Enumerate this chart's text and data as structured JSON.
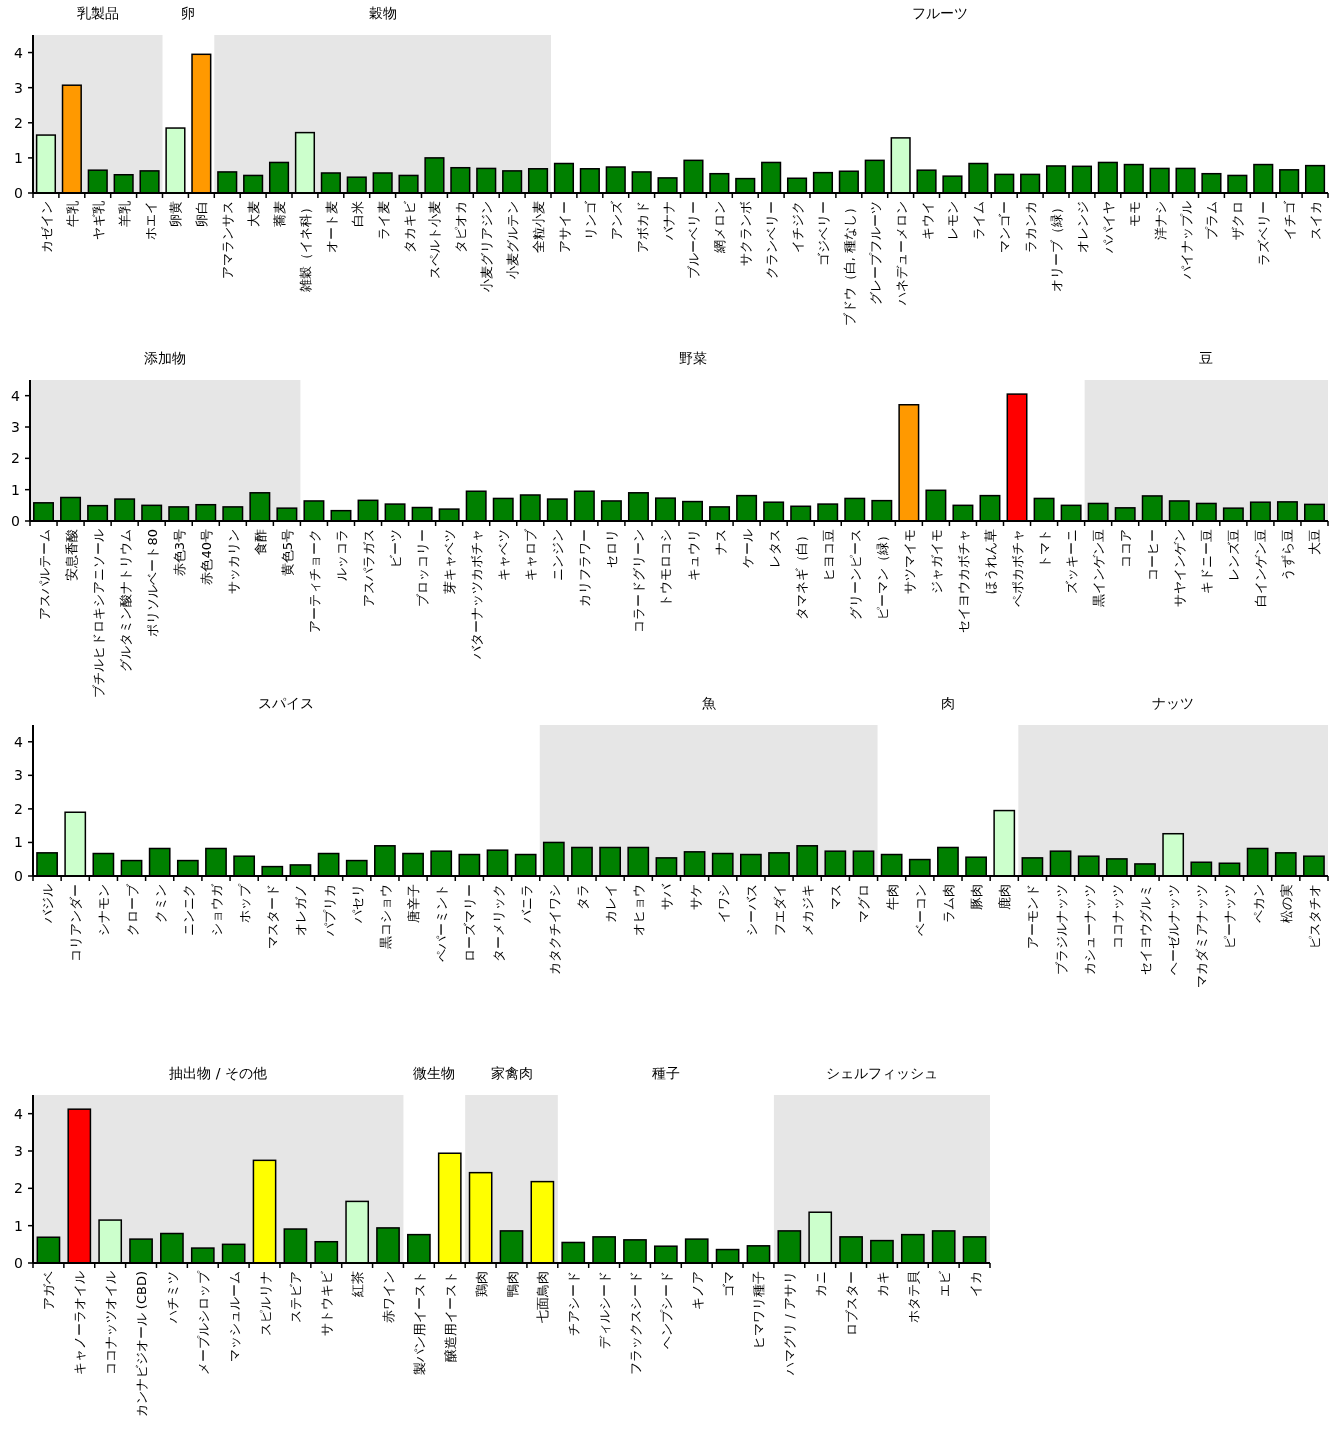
{
  "chart_data": [
    {
      "type": "bar",
      "ylim": [
        0,
        4.5
      ],
      "yticks": [
        0,
        1,
        2,
        3,
        4
      ],
      "categories": [
        "カゼイン",
        "牛乳",
        "ヤギ乳",
        "羊乳",
        "ホエイ",
        "卵黄",
        "卵白",
        "アマランサス",
        "大麦",
        "蕎麦",
        "雑穀（イネ科）",
        "オート麦",
        "白米",
        "ライ麦",
        "タカキビ",
        "スペルト小麦",
        "タピオカ",
        "小麦グリアジン",
        "小麦グルテン",
        "全粒小麦",
        "アサイー",
        "リンゴ",
        "アンズ",
        "アボカド",
        "バナナ",
        "ブルーベリー",
        "網メロン",
        "サクランボ",
        "クランベリー",
        "イチジク",
        "ゴジベリー",
        "ブドウ（白, 種なし）",
        "グレープフルーツ",
        "ハネデューメロン",
        "キウイ",
        "レモン",
        "ライム",
        "マンゴー",
        "ラカンカ",
        "オリーブ（緑）",
        "オレンジ",
        "パパイヤ",
        "モモ",
        "洋ナシ",
        "パイナップル",
        "プラム",
        "ザクロ",
        "ラズベリー",
        "イチゴ",
        "スイカ"
      ],
      "values": [
        1.65,
        3.07,
        0.65,
        0.52,
        0.63,
        1.85,
        3.95,
        0.6,
        0.5,
        0.87,
        1.72,
        0.57,
        0.45,
        0.57,
        0.5,
        1.0,
        0.72,
        0.7,
        0.63,
        0.69,
        0.84,
        0.69,
        0.74,
        0.6,
        0.43,
        0.93,
        0.55,
        0.41,
        0.87,
        0.42,
        0.58,
        0.62,
        0.93,
        1.57,
        0.65,
        0.48,
        0.84,
        0.53,
        0.53,
        0.77,
        0.76,
        0.87,
        0.81,
        0.7,
        0.7,
        0.55,
        0.5,
        0.81,
        0.66,
        0.78
      ],
      "colors": [
        "#ccffcc",
        "#ff9900",
        "#008000",
        "#008000",
        "#008000",
        "#ccffcc",
        "#ff9900",
        "#008000",
        "#008000",
        "#008000",
        "#ccffcc",
        "#008000",
        "#008000",
        "#008000",
        "#008000",
        "#008000",
        "#008000",
        "#008000",
        "#008000",
        "#008000",
        "#008000",
        "#008000",
        "#008000",
        "#008000",
        "#008000",
        "#008000",
        "#008000",
        "#008000",
        "#008000",
        "#008000",
        "#008000",
        "#008000",
        "#008000",
        "#ccffcc",
        "#008000",
        "#008000",
        "#008000",
        "#008000",
        "#008000",
        "#008000",
        "#008000",
        "#008000",
        "#008000",
        "#008000",
        "#008000",
        "#008000",
        "#008000",
        "#008000",
        "#008000",
        "#008000"
      ],
      "bands": [
        {
          "axis": "x",
          "from": "カゼイン",
          "to": "ホエイ",
          "label": "乳製品",
          "color": "#e6e6e6"
        },
        {
          "axis": "x",
          "from": "アマランサス",
          "to": "全粒小麦",
          "label": "穀物",
          "color": "#e6e6e6"
        }
      ],
      "annotations": [
        "卵",
        "フルーツ"
      ]
    },
    {
      "type": "bar",
      "ylim": [
        0,
        4.5
      ],
      "yticks": [
        0,
        1,
        2,
        3,
        4
      ],
      "categories": [
        "アスパルテーム",
        "安息香酸",
        "ブチルヒドロキシアニソール",
        "グルタミン酸ナトリウム",
        "ポリソルベート80",
        "赤色3号",
        "赤色40号",
        "サッカリン",
        "食酢",
        "黄色5号",
        "アーティチョーク",
        "ルッコラ",
        "アスパラガス",
        "ビーツ",
        "ブロッコリー",
        "芽キャベツ",
        "バターナッツカボチャ",
        "キャベツ",
        "キャロブ",
        "ニンジン",
        "カリフラワー",
        "セロリ",
        "コラードグリーン",
        "トウモロコシ",
        "キュウリ",
        "ナス",
        "ケール",
        "レタス",
        "タマネギ（白）",
        "ヒヨコ豆",
        "グリーンピース",
        "ピーマン（緑）",
        "サツマイモ",
        "ジャガイモ",
        "セイヨウカボチャ",
        "ほうれん草",
        "ペポカボチャ",
        "トマト",
        "ズッキーニ",
        "黒インゲン豆",
        "ココア",
        "コーヒー",
        "サヤインゲン",
        "キドニー豆",
        "レンズ豆",
        "白インゲン豆",
        "うずら豆",
        "大豆"
      ],
      "values": [
        0.58,
        0.75,
        0.49,
        0.7,
        0.5,
        0.45,
        0.52,
        0.45,
        0.9,
        0.41,
        0.64,
        0.33,
        0.66,
        0.54,
        0.43,
        0.38,
        0.95,
        0.72,
        0.83,
        0.7,
        0.95,
        0.64,
        0.9,
        0.73,
        0.62,
        0.45,
        0.81,
        0.6,
        0.47,
        0.54,
        0.72,
        0.65,
        3.71,
        0.98,
        0.5,
        0.81,
        4.05,
        0.72,
        0.5,
        0.56,
        0.42,
        0.8,
        0.64,
        0.56,
        0.41,
        0.6,
        0.61,
        0.53
      ],
      "colors": [
        "#008000",
        "#008000",
        "#008000",
        "#008000",
        "#008000",
        "#008000",
        "#008000",
        "#008000",
        "#008000",
        "#008000",
        "#008000",
        "#008000",
        "#008000",
        "#008000",
        "#008000",
        "#008000",
        "#008000",
        "#008000",
        "#008000",
        "#008000",
        "#008000",
        "#008000",
        "#008000",
        "#008000",
        "#008000",
        "#008000",
        "#008000",
        "#008000",
        "#008000",
        "#008000",
        "#008000",
        "#008000",
        "#ff9900",
        "#008000",
        "#008000",
        "#008000",
        "#ff0000",
        "#008000",
        "#008000",
        "#008000",
        "#008000",
        "#008000",
        "#008000",
        "#008000",
        "#008000",
        "#008000",
        "#008000",
        "#008000"
      ],
      "bands": [
        {
          "axis": "x",
          "from": "アスパルテーム",
          "to": "黄色5号",
          "label": "添加物",
          "color": "#e6e6e6"
        },
        {
          "axis": "x",
          "from": "黒インゲン豆",
          "to": "大豆",
          "label": "豆",
          "color": "#e6e6e6"
        }
      ],
      "annotations": [
        "野菜"
      ]
    },
    {
      "type": "bar",
      "ylim": [
        0,
        4.5
      ],
      "yticks": [
        0,
        1,
        2,
        3,
        4
      ],
      "categories": [
        "バジル",
        "コリアンダー",
        "シナモン",
        "クローブ",
        "クミン",
        "ニンニク",
        "ショウガ",
        "ホップ",
        "マスタード",
        "オレガノ",
        "パプリカ",
        "パセリ",
        "黒コショウ",
        "唐辛子",
        "ペパーミント",
        "ローズマリー",
        "ターメリック",
        "バニラ",
        "カタクチイワシ",
        "タラ",
        "カレイ",
        "オヒョウ",
        "サバ",
        "サケ",
        "イワシ",
        "シーバス",
        "フエダイ",
        "メカジキ",
        "マス",
        "マグロ",
        "牛肉",
        "ベーコン",
        "ラム肉",
        "豚肉",
        "鹿肉",
        "アーモンド",
        "ブラジルナッツ",
        "カシューナッツ",
        "ココナッツ",
        "セイヨウグルミ",
        "ヘーゼルナッツ",
        "マカダミアナッツ",
        "ピーナッツ",
        "ペカン",
        "松の実",
        "ピスタチオ"
      ],
      "values": [
        0.69,
        1.9,
        0.67,
        0.46,
        0.82,
        0.46,
        0.82,
        0.59,
        0.28,
        0.33,
        0.67,
        0.46,
        0.9,
        0.67,
        0.74,
        0.64,
        0.77,
        0.64,
        1.0,
        0.85,
        0.85,
        0.85,
        0.54,
        0.72,
        0.67,
        0.64,
        0.69,
        0.9,
        0.74,
        0.74,
        0.64,
        0.49,
        0.85,
        0.56,
        1.95,
        0.54,
        0.74,
        0.59,
        0.51,
        0.36,
        1.26,
        0.41,
        0.38,
        0.82,
        0.69,
        0.59
      ],
      "colors": [
        "#008000",
        "#ccffcc",
        "#008000",
        "#008000",
        "#008000",
        "#008000",
        "#008000",
        "#008000",
        "#008000",
        "#008000",
        "#008000",
        "#008000",
        "#008000",
        "#008000",
        "#008000",
        "#008000",
        "#008000",
        "#008000",
        "#008000",
        "#008000",
        "#008000",
        "#008000",
        "#008000",
        "#008000",
        "#008000",
        "#008000",
        "#008000",
        "#008000",
        "#008000",
        "#008000",
        "#008000",
        "#008000",
        "#008000",
        "#008000",
        "#ccffcc",
        "#008000",
        "#008000",
        "#008000",
        "#008000",
        "#008000",
        "#ccffcc",
        "#008000",
        "#008000",
        "#008000",
        "#008000",
        "#008000"
      ],
      "bands": [
        {
          "axis": "x",
          "from": "カタクチイワシ",
          "to": "マグロ",
          "label": "魚",
          "color": "#e6e6e6"
        },
        {
          "axis": "x",
          "from": "アーモンド",
          "to": "ピスタチオ",
          "label": "ナッツ",
          "color": "#e6e6e6"
        }
      ],
      "annotations": [
        "スパイス",
        "肉"
      ]
    },
    {
      "type": "bar",
      "ylim": [
        0,
        4.5
      ],
      "yticks": [
        0,
        1,
        2,
        3,
        4
      ],
      "categories": [
        "アガベ",
        "キャノーラオイル",
        "ココナッツオイル",
        "カンナビジオール (CBD)",
        "ハチミツ",
        "メープルシロップ",
        "マッシュルーム",
        "スピルリナ",
        "ステビア",
        "サトウキビ",
        "紅茶",
        "赤ワイン",
        "製パン用イースト",
        "醸造用イースト",
        "鶏肉",
        "鴨肉",
        "七面鳥肉",
        "チアシード",
        "ディルシード",
        "フラックスシード",
        "ヘンプシード",
        "キノア",
        "ゴマ",
        "ヒマワリ種子",
        "ハマグリ / アサリ",
        "カニ",
        "ロブスター",
        "カキ",
        "ホタテ貝",
        "エビ",
        "イカ"
      ],
      "values": [
        0.69,
        4.12,
        1.15,
        0.64,
        0.79,
        0.4,
        0.5,
        2.75,
        0.91,
        0.57,
        1.65,
        0.94,
        0.76,
        2.94,
        2.42,
        0.86,
        2.18,
        0.55,
        0.7,
        0.62,
        0.45,
        0.64,
        0.36,
        0.46,
        0.86,
        1.36,
        0.7,
        0.6,
        0.76,
        0.86,
        0.7
      ],
      "colors": [
        "#008000",
        "#ff0000",
        "#ccffcc",
        "#008000",
        "#008000",
        "#008000",
        "#008000",
        "#ffff00",
        "#008000",
        "#008000",
        "#ccffcc",
        "#008000",
        "#008000",
        "#ffff00",
        "#ffff00",
        "#008000",
        "#ffff00",
        "#008000",
        "#008000",
        "#008000",
        "#008000",
        "#008000",
        "#008000",
        "#008000",
        "#008000",
        "#ccffcc",
        "#008000",
        "#008000",
        "#008000",
        "#008000",
        "#008000"
      ],
      "bands": [
        {
          "axis": "x",
          "from": "アガベ",
          "to": "赤ワイン",
          "label": "抽出物 / その他",
          "color": "#e6e6e6"
        },
        {
          "axis": "x",
          "from": "鶏肉",
          "to": "七面鳥肉",
          "label": "家禽肉",
          "color": "#e6e6e6"
        },
        {
          "axis": "x",
          "from": "ハマグリ / アサリ",
          "to": "イカ",
          "label": "シェルフィッシュ",
          "color": "#e6e6e6"
        }
      ],
      "annotations": [
        "微生物",
        "種子"
      ]
    }
  ]
}
